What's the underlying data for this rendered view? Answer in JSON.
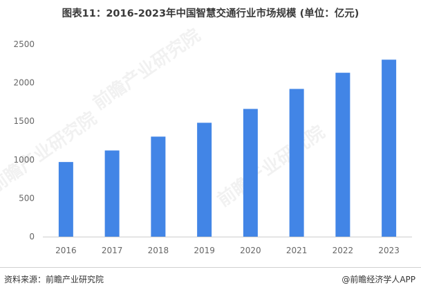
{
  "title": "图表11：2016-2023年中国智慧交通行业市场规模 (单位：亿元)",
  "footer": {
    "source": "资料来源：前瞻产业研究院",
    "brand": "@前瞻经济学人APP"
  },
  "watermark": "前瞻产业研究院",
  "colors": {
    "bar": "#4285e6",
    "axis": "#cccccc",
    "tick": "#666666"
  },
  "chart_data": {
    "type": "bar",
    "title": "图表11：2016-2023年中国智慧交通行业市场规模 (单位：亿元)",
    "categories": [
      "2016",
      "2017",
      "2018",
      "2019",
      "2020",
      "2021",
      "2022",
      "2023"
    ],
    "values": [
      970,
      1120,
      1300,
      1480,
      1660,
      1920,
      2130,
      2300
    ],
    "xlabel": "",
    "ylabel": "",
    "ylim": [
      0,
      2500
    ],
    "yticks": [
      0,
      500,
      1000,
      1500,
      2000,
      2500
    ],
    "grid": false,
    "legend": "none"
  }
}
